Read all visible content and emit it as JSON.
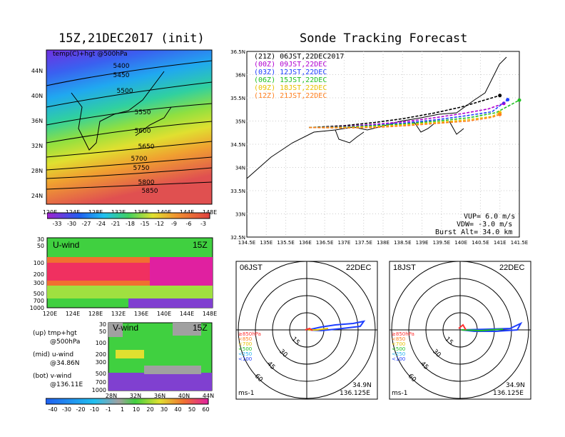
{
  "left_title": "15Z,21DEC2017 (init)",
  "right_title": "Sonde Tracking Forecast",
  "map_panel": {
    "label": "temp(C)+hgt @500hPa",
    "lat_ticks": [
      "44N",
      "40N",
      "36N",
      "32N",
      "28N",
      "24N"
    ],
    "lon_ticks": [
      "120E",
      "124E",
      "128E",
      "132E",
      "136E",
      "140E",
      "144E",
      "148E"
    ],
    "contour_labels": [
      "5400",
      "5450",
      "5500",
      "5550",
      "5600",
      "5650",
      "5700",
      "5750",
      "5800",
      "5850"
    ],
    "colorbar_ticks": [
      "-33",
      "-30",
      "-27",
      "-24",
      "-21",
      "-18",
      "-15",
      "-12",
      "-9",
      "-6",
      "-3"
    ]
  },
  "u_panel": {
    "label": "U-wind",
    "time": "15Z",
    "p_ticks": [
      "30",
      "50",
      "100",
      "200",
      "300",
      "500",
      "700",
      "1000"
    ],
    "lon_ticks": [
      "120E",
      "124E",
      "128E",
      "132E",
      "136E",
      "140E",
      "144E",
      "148E"
    ]
  },
  "v_panel": {
    "label": "V-wind",
    "time": "15Z",
    "p_ticks": [
      "30",
      "50",
      "100",
      "200",
      "300",
      "500",
      "700",
      "1000"
    ],
    "lat_ticks": [
      "28N",
      "32N",
      "36N",
      "40N",
      "44N"
    ]
  },
  "legend_text": {
    "up1": "(up) tmp+hgt",
    "up2": "@500hPa",
    "mid1": "(mid) u-wind",
    "mid2": "@34.86N",
    "bot1": "(bot) v-wind",
    "bot2": "@136.11E"
  },
  "wind_colorbar_ticks": [
    "-40",
    "-30",
    "-20",
    "-10",
    "-1",
    "1",
    "10",
    "20",
    "30",
    "40",
    "50",
    "60"
  ],
  "colors": {
    "track_21Z": "#000000",
    "track_00Z": "#b000d0",
    "track_03Z": "#2040ff",
    "track_06Z": "#20c020",
    "track_09Z": "#e8c000",
    "track_12Z": "#ff8020"
  },
  "chart_data": {
    "type": "line",
    "title": "Sonde Tracking Forecast",
    "xlim": [
      134.5,
      141.5
    ],
    "ylim": [
      32.5,
      36.5
    ],
    "x_ticks": [
      "134.5E",
      "135E",
      "135.5E",
      "136E",
      "136.5E",
      "137E",
      "137.5E",
      "138E",
      "138.5E",
      "139E",
      "139.5E",
      "140E",
      "140.5E",
      "141E",
      "141.5E"
    ],
    "y_ticks": [
      "36.5N",
      "36N",
      "35.5N",
      "35N",
      "34.5N",
      "34N",
      "33.5N",
      "33N",
      "32.5N"
    ],
    "series": [
      {
        "name": "(21Z) 06JST,22DEC2017",
        "color": "#000000",
        "x": [
          136.1,
          137.0,
          137.8,
          138.5,
          139.3,
          140.0,
          140.6,
          141.0
        ],
        "y": [
          34.86,
          34.9,
          34.97,
          35.05,
          35.17,
          35.3,
          35.45,
          35.55
        ]
      },
      {
        "name": "(00Z) 09JST,22DEC",
        "color": "#b000d0",
        "x": [
          136.1,
          137.0,
          137.8,
          138.6,
          139.4,
          140.1,
          140.7,
          141.1
        ],
        "y": [
          34.86,
          34.88,
          34.93,
          34.99,
          35.08,
          35.17,
          35.26,
          35.38
        ]
      },
      {
        "name": "(03Z) 12JST,22DEC",
        "color": "#2040ff",
        "x": [
          136.1,
          137.0,
          137.8,
          138.6,
          139.4,
          140.1,
          140.8,
          141.2
        ],
        "y": [
          34.86,
          34.87,
          34.91,
          34.96,
          35.03,
          35.11,
          35.2,
          35.46
        ]
      },
      {
        "name": "(06Z) 15JST,22DEC",
        "color": "#20c020",
        "x": [
          136.1,
          137.0,
          137.8,
          138.6,
          139.4,
          140.2,
          140.9,
          141.5
        ],
        "y": [
          34.86,
          34.87,
          34.9,
          34.94,
          35.0,
          35.07,
          35.18,
          35.45
        ]
      },
      {
        "name": "(09Z) 18JST,22DEC",
        "color": "#e8c000",
        "x": [
          136.1,
          137.0,
          137.8,
          138.6,
          139.4,
          140.2,
          140.8,
          141.0
        ],
        "y": [
          34.86,
          34.86,
          34.88,
          34.92,
          34.97,
          35.03,
          35.1,
          35.18
        ]
      },
      {
        "name": "(12Z) 21JST,22DEC",
        "color": "#ff8020",
        "x": [
          136.1,
          137.0,
          137.8,
          138.6,
          139.4,
          140.2,
          140.8,
          141.0
        ],
        "y": [
          34.86,
          34.85,
          34.86,
          34.9,
          34.95,
          35.0,
          35.08,
          35.14
        ]
      }
    ],
    "stats": {
      "vup": "VUP= 6.0 m/s",
      "vdw": "VDW= -3.0 m/s",
      "burst": "Burst Alt= 34.0 km"
    }
  },
  "polar": [
    {
      "time_label": "06JST",
      "date_label": "22DEC",
      "pos": "34.9N",
      "lon": "136.125E",
      "unit": "ms-1"
    },
    {
      "time_label": "18JST",
      "date_label": "22DEC",
      "pos": "34.9N",
      "lon": "136.125E",
      "unit": "ms-1"
    }
  ],
  "polar_ring_labels": [
    "15",
    "30",
    "45",
    "60"
  ],
  "polar_legend": [
    "≥850hPa",
    "<850",
    "<700",
    "<500",
    "<250",
    "<100"
  ]
}
